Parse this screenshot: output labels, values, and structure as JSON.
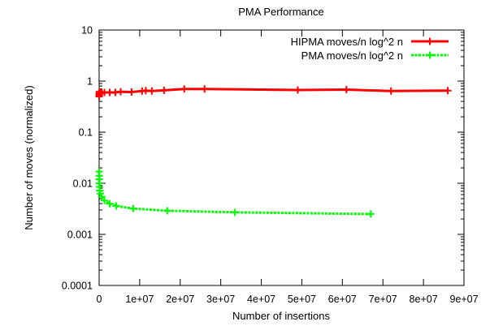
{
  "chart_data": {
    "type": "line",
    "title": "PMA Performance",
    "xlabel": "Number of insertions",
    "ylabel": "Number of moves (normalized)",
    "x_scale": "linear",
    "y_scale": "log",
    "xlim": [
      0,
      90000000
    ],
    "ylim": [
      0.0001,
      10
    ],
    "x_ticks": [
      0,
      10000000,
      20000000,
      30000000,
      40000000,
      50000000,
      60000000,
      70000000,
      80000000,
      90000000
    ],
    "x_tick_labels": [
      "0",
      "1e+07",
      "2e+07",
      "3e+07",
      "4e+07",
      "5e+07",
      "6e+07",
      "7e+07",
      "8e+07",
      "9e+07"
    ],
    "y_ticks": [
      0.0001,
      0.001,
      0.01,
      0.1,
      1,
      10
    ],
    "y_tick_labels": [
      "0.0001",
      "0.001",
      "0.01",
      "0.1",
      "1",
      "10"
    ],
    "grid": false,
    "legend_position": "top-right",
    "series": [
      {
        "name": "HIPMA moves/n log^2 n",
        "color": "#ff0000",
        "line_style": "solid",
        "marker": "plus",
        "points": [
          [
            2000,
            0.5
          ],
          [
            5000,
            0.52
          ],
          [
            10000,
            0.55
          ],
          [
            20000,
            0.57
          ],
          [
            40000,
            0.6
          ],
          [
            80000,
            0.62
          ],
          [
            160000,
            0.6
          ],
          [
            320000,
            0.58
          ],
          [
            640000,
            0.59
          ],
          [
            1300000,
            0.6
          ],
          [
            2600000,
            0.6
          ],
          [
            4000000,
            0.6
          ],
          [
            5300000,
            0.62
          ],
          [
            8000000,
            0.61
          ],
          [
            10600000,
            0.64
          ],
          [
            11500000,
            0.65
          ],
          [
            13000000,
            0.64
          ],
          [
            16000000,
            0.66
          ],
          [
            21000000,
            0.7
          ],
          [
            26000000,
            0.7
          ],
          [
            49000000,
            0.67
          ],
          [
            61000000,
            0.68
          ],
          [
            72000000,
            0.64
          ],
          [
            86000000,
            0.65
          ]
        ]
      },
      {
        "name": "PMA moves/n log^2 n",
        "color": "#00ff00",
        "line_style": "dashed",
        "marker": "plus",
        "points": [
          [
            5000,
            0.017
          ],
          [
            10000,
            0.014
          ],
          [
            20000,
            0.012
          ],
          [
            40000,
            0.01
          ],
          [
            80000,
            0.0085
          ],
          [
            160000,
            0.0072
          ],
          [
            320000,
            0.0063
          ],
          [
            640000,
            0.0055
          ],
          [
            1300000,
            0.0046
          ],
          [
            2600000,
            0.004
          ],
          [
            4200000,
            0.0036
          ],
          [
            8400000,
            0.0032
          ],
          [
            16800000,
            0.0029
          ],
          [
            33500000,
            0.0027
          ],
          [
            67000000,
            0.0025
          ]
        ]
      }
    ]
  }
}
